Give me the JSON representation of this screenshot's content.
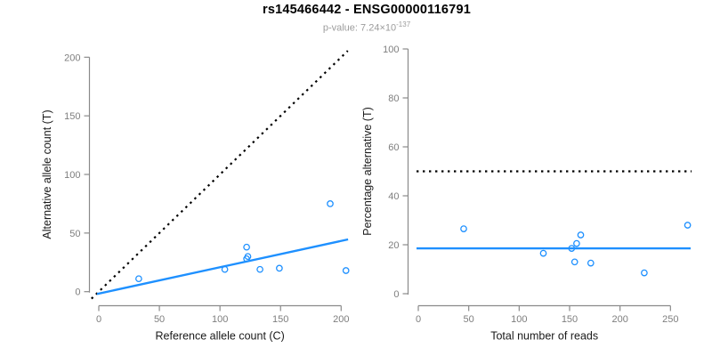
{
  "header": {
    "title": "rs145466442 - ENSG00000116791",
    "subtitle_label": "p-value: ",
    "subtitle_value": "7.24×10",
    "subtitle_exponent": "-137"
  },
  "colors": {
    "accent_blue": "#1E90FF",
    "dotted_black": "#000000",
    "axis_gray": "#8A8A8A",
    "tick_label_gray": "#7E7E7E",
    "label_black": "#1A1A1A",
    "subtitle_gray": "#9C9C9C"
  },
  "chart_data": [
    {
      "type": "scatter",
      "panel": "left",
      "xlabel": "Reference allele count (C)",
      "ylabel": "Alternative allele count (T)",
      "xlim": [
        0,
        205
      ],
      "ylim": [
        0,
        205
      ],
      "xticks": [
        0,
        50,
        100,
        150,
        200
      ],
      "yticks": [
        0,
        50,
        100,
        150,
        200
      ],
      "grid": false,
      "point_style": "open-circle",
      "point_color": "#1E90FF",
      "points": [
        [
          33,
          11
        ],
        [
          104,
          19
        ],
        [
          122,
          28
        ],
        [
          122,
          38
        ],
        [
          123,
          30
        ],
        [
          133,
          19
        ],
        [
          149,
          20
        ],
        [
          191,
          75
        ],
        [
          204,
          18
        ]
      ],
      "lines": [
        {
          "name": "identity-line",
          "desc": "y = x",
          "style": "dotted",
          "color": "#000000",
          "from": [
            -6,
            -6
          ],
          "to": [
            205.5,
            205.5
          ]
        },
        {
          "name": "regression-line",
          "desc": "fitted allelic ratio",
          "style": "solid",
          "color": "#1E90FF",
          "from": [
            -1.5,
            -2
          ],
          "to": [
            205.7,
            44.6
          ]
        }
      ]
    },
    {
      "type": "scatter",
      "panel": "right",
      "xlabel": "Total number of reads",
      "ylabel": "Percentage alternative (T)",
      "xlim": [
        0,
        265
      ],
      "ylim": [
        0,
        100
      ],
      "xticks": [
        0,
        50,
        100,
        150,
        200,
        250
      ],
      "yticks": [
        0,
        20,
        40,
        60,
        80,
        100
      ],
      "grid": false,
      "point_style": "open-circle",
      "point_color": "#1E90FF",
      "points": [
        [
          45,
          26.5
        ],
        [
          124,
          16.5
        ],
        [
          152,
          18.5
        ],
        [
          155,
          13
        ],
        [
          157,
          20.5
        ],
        [
          161,
          24
        ],
        [
          171,
          12.5
        ],
        [
          224,
          8.5
        ],
        [
          267,
          28
        ]
      ],
      "lines": [
        {
          "name": "fifty-percent-line",
          "desc": "50% reference",
          "style": "dotted",
          "color": "#000000",
          "from": [
            -1.8,
            50
          ],
          "to": [
            270.9,
            50
          ]
        },
        {
          "name": "mean-percentage-line",
          "desc": "mean alternative percentage",
          "style": "solid",
          "color": "#1E90FF",
          "from": [
            -1.8,
            18.5
          ],
          "to": [
            270,
            18.5
          ]
        }
      ]
    }
  ]
}
